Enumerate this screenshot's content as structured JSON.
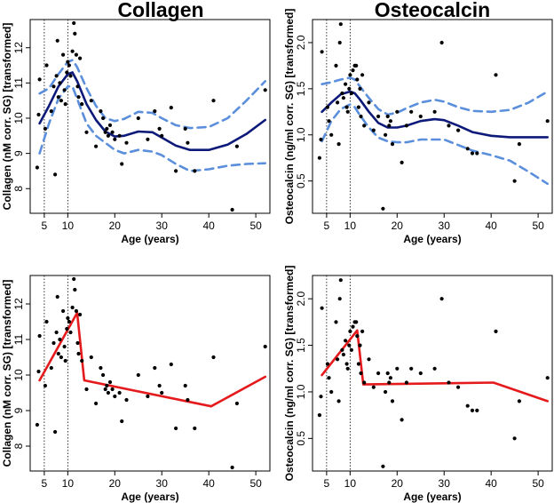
{
  "titles": {
    "left": "Collagen",
    "right": "Osteocalcin"
  },
  "colors": {
    "smooth": "#0d1a7a",
    "ci": "#5b8fdc",
    "segmented": "#e41a1c",
    "points": "#000000"
  },
  "chart_data": [
    {
      "type": "scatter",
      "title": "Collagen",
      "xlabel": "Age (years)",
      "ylabel": "Collagen (nM corr. SG) [transformed]",
      "xticks": [
        "10",
        "20",
        "30",
        "40",
        "50"
      ],
      "x_extra_tick": "5",
      "yticks": [
        "8",
        "9",
        "10",
        "11",
        "12"
      ],
      "xlim": [
        2,
        53
      ],
      "ylim": [
        7.3,
        12.8
      ],
      "vlines": [
        5,
        10
      ],
      "points": [
        [
          3.5,
          8.6
        ],
        [
          3.8,
          10.1
        ],
        [
          4,
          11.1
        ],
        [
          5.2,
          9.7
        ],
        [
          5.5,
          11.5
        ],
        [
          6.5,
          10.2
        ],
        [
          7,
          10.9
        ],
        [
          7.3,
          8.4
        ],
        [
          7.6,
          11.2
        ],
        [
          7.8,
          12.2
        ],
        [
          8,
          10.6
        ],
        [
          8.3,
          11
        ],
        [
          8.6,
          10.5
        ],
        [
          9,
          11.8
        ],
        [
          9.3,
          10.8
        ],
        [
          9.5,
          10.4
        ],
        [
          9.8,
          11.3
        ],
        [
          10,
          11.6
        ],
        [
          10.3,
          11.5
        ],
        [
          10.6,
          11.2
        ],
        [
          11,
          11.9
        ],
        [
          11.3,
          12.7
        ],
        [
          11.5,
          12.4
        ],
        [
          11.8,
          11.8
        ],
        [
          12.1,
          10.9
        ],
        [
          12.3,
          10.6
        ],
        [
          12.6,
          11.7
        ],
        [
          13,
          10.4
        ],
        [
          14,
          9.6
        ],
        [
          15,
          10.5
        ],
        [
          16,
          9.2
        ],
        [
          17,
          10.2
        ],
        [
          17.5,
          10.0
        ],
        [
          18,
          9.6
        ],
        [
          18.3,
          9.7
        ],
        [
          18.6,
          9.5
        ],
        [
          19,
          9.8
        ],
        [
          19.5,
          9.6
        ],
        [
          20,
          9.4
        ],
        [
          21,
          9.5
        ],
        [
          21.5,
          8.7
        ],
        [
          22.5,
          9.3
        ],
        [
          25,
          10.0
        ],
        [
          27,
          9.4
        ],
        [
          28.5,
          10.2
        ],
        [
          29.5,
          9.7
        ],
        [
          30,
          9.5
        ],
        [
          32,
          10.3
        ],
        [
          33,
          8.5
        ],
        [
          35,
          9.7
        ],
        [
          35.5,
          9.3
        ],
        [
          37,
          8.5
        ],
        [
          41,
          10.5
        ],
        [
          45,
          7.4
        ],
        [
          46,
          9.2
        ],
        [
          52,
          10.8
        ]
      ],
      "smooth": {
        "x": [
          4,
          6,
          8,
          10,
          11,
          12,
          14,
          16,
          18,
          20,
          22,
          25,
          28,
          30,
          33,
          36,
          40,
          44,
          48,
          52
        ],
        "y": [
          9.85,
          10.35,
          10.9,
          11.25,
          11.3,
          11.05,
          10.4,
          9.95,
          9.62,
          9.48,
          9.5,
          9.62,
          9.6,
          9.45,
          9.22,
          9.1,
          9.1,
          9.25,
          9.55,
          9.95
        ]
      },
      "ci_upper": {
        "x": [
          4,
          6,
          8,
          10,
          11,
          12,
          14,
          16,
          18,
          20,
          22,
          25,
          28,
          30,
          33,
          36,
          40,
          44,
          48,
          52
        ],
        "y": [
          10.7,
          10.85,
          11.25,
          11.6,
          11.65,
          11.45,
          10.85,
          10.35,
          10.0,
          9.92,
          9.98,
          10.18,
          10.15,
          10.0,
          9.8,
          9.72,
          9.75,
          10.0,
          10.5,
          11.05
        ]
      },
      "ci_lower": {
        "x": [
          4,
          6,
          8,
          10,
          11,
          12,
          14,
          16,
          18,
          20,
          22,
          25,
          28,
          30,
          33,
          36,
          40,
          44,
          48,
          52
        ],
        "y": [
          9.0,
          9.85,
          10.55,
          10.9,
          10.9,
          10.55,
          9.85,
          9.5,
          9.3,
          9.1,
          9.0,
          9.1,
          9.05,
          8.95,
          8.7,
          8.5,
          8.55,
          8.65,
          8.7,
          8.72
        ]
      },
      "segmented": null
    },
    {
      "type": "scatter",
      "title": "Osteocalcin",
      "xlabel": "Age (years)",
      "ylabel": "Osteocalcin (ng/ml corr. SG) [transformed]",
      "xticks": [
        "10",
        "20",
        "30",
        "40",
        "50"
      ],
      "x_extra_tick": "5",
      "yticks": [
        "0.5",
        "1.0",
        "1.5",
        "2.0"
      ],
      "xlim": [
        2,
        53
      ],
      "ylim": [
        0.15,
        2.25
      ],
      "vlines": [
        5,
        10
      ],
      "points": [
        [
          3.5,
          0.75
        ],
        [
          3.8,
          0.95
        ],
        [
          4,
          1.9
        ],
        [
          5.2,
          1.3
        ],
        [
          5.5,
          1.15
        ],
        [
          6,
          1.0
        ],
        [
          7,
          1.75
        ],
        [
          7.3,
          1.35
        ],
        [
          7.6,
          0.9
        ],
        [
          7.8,
          2.0
        ],
        [
          8,
          2.2
        ],
        [
          8.3,
          1.45
        ],
        [
          8.6,
          1.4
        ],
        [
          9,
          1.55
        ],
        [
          9.3,
          1.3
        ],
        [
          9.5,
          1.25
        ],
        [
          9.8,
          1.5
        ],
        [
          10,
          1.65
        ],
        [
          10.3,
          1.45
        ],
        [
          10.6,
          1.7
        ],
        [
          11,
          1.75
        ],
        [
          11.3,
          1.75
        ],
        [
          11.5,
          1.6
        ],
        [
          11.8,
          1.3
        ],
        [
          12.1,
          1.5
        ],
        [
          12.3,
          1.2
        ],
        [
          12.6,
          1.65
        ],
        [
          13,
          1.1
        ],
        [
          14,
          1.35
        ],
        [
          15,
          1.05
        ],
        [
          16,
          1.2
        ],
        [
          17,
          0.2
        ],
        [
          17.5,
          1.0
        ],
        [
          18,
          1.2
        ],
        [
          18.3,
          1.1
        ],
        [
          18.6,
          1.15
        ],
        [
          19,
          0.9
        ],
        [
          20,
          1.25
        ],
        [
          21,
          0.7
        ],
        [
          22,
          1.1
        ],
        [
          23,
          1.25
        ],
        [
          25,
          1.2
        ],
        [
          28,
          1.25
        ],
        [
          29.5,
          2.0
        ],
        [
          31,
          1.1
        ],
        [
          33,
          1.05
        ],
        [
          35,
          0.85
        ],
        [
          36,
          0.8
        ],
        [
          37,
          0.8
        ],
        [
          41,
          1.65
        ],
        [
          45,
          0.5
        ],
        [
          46,
          0.9
        ],
        [
          52,
          1.15
        ]
      ],
      "smooth": {
        "x": [
          4,
          6,
          8,
          10,
          11,
          12,
          14,
          16,
          18,
          20,
          22,
          25,
          28,
          30,
          33,
          36,
          40,
          44,
          48,
          52
        ],
        "y": [
          1.25,
          1.35,
          1.44,
          1.47,
          1.45,
          1.39,
          1.25,
          1.13,
          1.08,
          1.08,
          1.1,
          1.15,
          1.17,
          1.16,
          1.1,
          1.03,
          0.99,
          0.975,
          0.975,
          0.975
        ]
      },
      "ci_upper": {
        "x": [
          4,
          6,
          8,
          10,
          11,
          12,
          14,
          16,
          18,
          20,
          22,
          25,
          28,
          30,
          33,
          36,
          40,
          44,
          48,
          52
        ],
        "y": [
          1.55,
          1.57,
          1.6,
          1.62,
          1.6,
          1.53,
          1.4,
          1.28,
          1.22,
          1.24,
          1.29,
          1.35,
          1.38,
          1.36,
          1.3,
          1.26,
          1.25,
          1.27,
          1.35,
          1.47
        ]
      },
      "ci_lower": {
        "x": [
          4,
          6,
          8,
          10,
          11,
          12,
          14,
          16,
          18,
          20,
          22,
          25,
          28,
          30,
          33,
          36,
          40,
          44,
          48,
          52
        ],
        "y": [
          0.93,
          1.15,
          1.28,
          1.33,
          1.3,
          1.22,
          1.08,
          0.97,
          0.93,
          0.92,
          0.92,
          0.95,
          0.95,
          0.95,
          0.89,
          0.83,
          0.78,
          0.72,
          0.6,
          0.47
        ]
      },
      "segmented": null
    },
    {
      "type": "scatter",
      "title": "",
      "xlabel": "Age (years)",
      "ylabel": "Collagen (nM corr. SG) [transformed]",
      "xticks": [
        "10",
        "20",
        "30",
        "40",
        "50"
      ],
      "x_extra_tick": "5",
      "yticks": [
        "8",
        "9",
        "10",
        "11",
        "12"
      ],
      "xlim": [
        2,
        53
      ],
      "ylim": [
        7.3,
        12.8
      ],
      "vlines": [
        5,
        10
      ],
      "points": [
        [
          3.5,
          8.6
        ],
        [
          3.8,
          10.1
        ],
        [
          4,
          11.1
        ],
        [
          5.2,
          9.7
        ],
        [
          5.5,
          11.5
        ],
        [
          6.5,
          10.2
        ],
        [
          7,
          10.9
        ],
        [
          7.3,
          8.4
        ],
        [
          7.6,
          11.2
        ],
        [
          7.8,
          12.2
        ],
        [
          8,
          10.6
        ],
        [
          8.3,
          11
        ],
        [
          8.6,
          10.5
        ],
        [
          9,
          11.8
        ],
        [
          9.3,
          10.8
        ],
        [
          9.5,
          10.4
        ],
        [
          9.8,
          11.3
        ],
        [
          10,
          11.6
        ],
        [
          10.3,
          11.5
        ],
        [
          10.6,
          11.2
        ],
        [
          11,
          11.9
        ],
        [
          11.3,
          12.7
        ],
        [
          11.5,
          12.4
        ],
        [
          11.8,
          11.8
        ],
        [
          12.1,
          10.9
        ],
        [
          12.3,
          10.6
        ],
        [
          12.6,
          11.7
        ],
        [
          13,
          10.4
        ],
        [
          14,
          9.6
        ],
        [
          15,
          10.5
        ],
        [
          16,
          9.2
        ],
        [
          17,
          10.2
        ],
        [
          17.5,
          10.0
        ],
        [
          18,
          9.6
        ],
        [
          18.3,
          9.7
        ],
        [
          18.6,
          9.5
        ],
        [
          19,
          9.8
        ],
        [
          19.5,
          9.6
        ],
        [
          20,
          9.4
        ],
        [
          21,
          9.5
        ],
        [
          21.5,
          8.7
        ],
        [
          22.5,
          9.3
        ],
        [
          25,
          10.0
        ],
        [
          27,
          9.4
        ],
        [
          28.5,
          10.2
        ],
        [
          29.5,
          9.7
        ],
        [
          30,
          9.5
        ],
        [
          32,
          10.3
        ],
        [
          33,
          8.5
        ],
        [
          35,
          9.7
        ],
        [
          35.5,
          9.3
        ],
        [
          37,
          8.5
        ],
        [
          41,
          10.5
        ],
        [
          45,
          7.4
        ],
        [
          46,
          9.2
        ],
        [
          52,
          10.8
        ]
      ],
      "smooth": null,
      "ci_upper": null,
      "ci_lower": null,
      "segmented": {
        "x": [
          4,
          12,
          13.5,
          40.5,
          52
        ],
        "y": [
          9.85,
          11.75,
          9.85,
          9.12,
          9.95
        ]
      }
    },
    {
      "type": "scatter",
      "title": "",
      "xlabel": "Age (years)",
      "ylabel": "Osteocalcin (ng/ml corr. SG) [transformed]",
      "xticks": [
        "10",
        "20",
        "30",
        "40",
        "50"
      ],
      "x_extra_tick": "5",
      "yticks": [
        "0.5",
        "1.0",
        "1.5",
        "2.0"
      ],
      "xlim": [
        2,
        53
      ],
      "ylim": [
        0.15,
        2.25
      ],
      "vlines": [
        5,
        10
      ],
      "points": [
        [
          3.5,
          0.75
        ],
        [
          3.8,
          0.95
        ],
        [
          4,
          1.9
        ],
        [
          5.2,
          1.3
        ],
        [
          5.5,
          1.15
        ],
        [
          6,
          1.0
        ],
        [
          7,
          1.75
        ],
        [
          7.3,
          1.35
        ],
        [
          7.6,
          0.9
        ],
        [
          7.8,
          2.0
        ],
        [
          8,
          2.2
        ],
        [
          8.3,
          1.45
        ],
        [
          8.6,
          1.4
        ],
        [
          9,
          1.55
        ],
        [
          9.3,
          1.3
        ],
        [
          9.5,
          1.25
        ],
        [
          9.8,
          1.5
        ],
        [
          10,
          1.65
        ],
        [
          10.3,
          1.45
        ],
        [
          10.6,
          1.7
        ],
        [
          11,
          1.75
        ],
        [
          11.3,
          1.75
        ],
        [
          11.5,
          1.6
        ],
        [
          11.8,
          1.3
        ],
        [
          12.1,
          1.5
        ],
        [
          12.3,
          1.2
        ],
        [
          12.6,
          1.65
        ],
        [
          13,
          1.1
        ],
        [
          14,
          1.35
        ],
        [
          15,
          1.05
        ],
        [
          16,
          1.2
        ],
        [
          17,
          0.2
        ],
        [
          17.5,
          1.0
        ],
        [
          18,
          1.2
        ],
        [
          18.3,
          1.1
        ],
        [
          18.6,
          1.15
        ],
        [
          19,
          0.9
        ],
        [
          20,
          1.25
        ],
        [
          21,
          0.7
        ],
        [
          22,
          1.1
        ],
        [
          23,
          1.25
        ],
        [
          25,
          1.2
        ],
        [
          28,
          1.25
        ],
        [
          29.5,
          2.0
        ],
        [
          31,
          1.1
        ],
        [
          33,
          1.05
        ],
        [
          35,
          0.85
        ],
        [
          36,
          0.8
        ],
        [
          37,
          0.8
        ],
        [
          41,
          1.65
        ],
        [
          45,
          0.5
        ],
        [
          46,
          0.9
        ],
        [
          52,
          1.15
        ]
      ],
      "smooth": null,
      "ci_upper": null,
      "ci_lower": null,
      "segmented": {
        "x": [
          4,
          11.5,
          12.8,
          40.5,
          52
        ],
        "y": [
          1.18,
          1.66,
          1.08,
          1.1,
          0.9
        ]
      }
    }
  ]
}
